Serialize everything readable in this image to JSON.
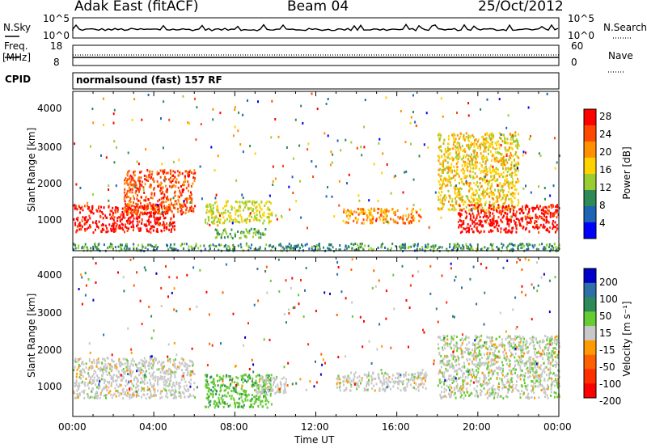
{
  "header": {
    "radar": "Adak East (fitACF)",
    "beam": "Beam 04",
    "date": "25/Oct/2012"
  },
  "top_panel": {
    "left_label": "N.Sky",
    "left_ticks": [
      "10^5",
      "10^0"
    ],
    "right_label": "N.Search",
    "right_ticks": [
      "10^5",
      "10^0"
    ]
  },
  "freq_panel": {
    "left_label_1": "Freq.",
    "left_label_2": "[MHz]",
    "left_ticks": [
      "18",
      "8"
    ],
    "right_label": "Nave",
    "right_ticks": [
      "60",
      "0"
    ]
  },
  "cpid": {
    "label": "CPID",
    "value": "normalsound (fast) 157 RF"
  },
  "chart_data": [
    {
      "type": "heatmap",
      "name": "Power",
      "ylabel": "Slant Range [km]",
      "colorbar_label": "Power [dB]",
      "colorbar_ticks": [
        "28",
        "24",
        "20",
        "16",
        "12",
        "8",
        "4"
      ],
      "colorbar_colors": [
        "#ff0000",
        "#ff4800",
        "#ff9000",
        "#ffd200",
        "#9acd32",
        "#2e8b57",
        "#1e64b4",
        "#0000ff"
      ],
      "y_ticks": [
        "4000",
        "3000",
        "2000",
        "1000"
      ],
      "ylim": [
        180,
        4500
      ],
      "xlim_hours": [
        0,
        24
      ],
      "regions": [
        {
          "x": [
            0.0,
            5.0
          ],
          "y": [
            700,
            1450
          ],
          "level": 28
        },
        {
          "x": [
            2.5,
            6.0
          ],
          "y": [
            1200,
            2400
          ],
          "level": 24
        },
        {
          "x": [
            6.5,
            9.8
          ],
          "y": [
            950,
            1550
          ],
          "level": 14
        },
        {
          "x": [
            7.0,
            9.5
          ],
          "y": [
            550,
            800
          ],
          "level": 10
        },
        {
          "x": [
            13.3,
            17.2
          ],
          "y": [
            950,
            1350
          ],
          "level": 20
        },
        {
          "x": [
            18.0,
            22.0
          ],
          "y": [
            1300,
            3400
          ],
          "level": 16
        },
        {
          "x": [
            19.0,
            24.0
          ],
          "y": [
            700,
            1450
          ],
          "level": 28
        },
        {
          "x": [
            0.0,
            24.0
          ],
          "y": [
            200,
            400
          ],
          "level": 8
        }
      ]
    },
    {
      "type": "heatmap",
      "name": "Velocity",
      "ylabel": "Slant Range [km]",
      "colorbar_label": "Velocity [m s⁻¹]",
      "colorbar_ticks": [
        "200",
        "100",
        "50",
        "15",
        "-15",
        "-50",
        "-100",
        "-200"
      ],
      "colorbar_colors": [
        "#0000c8",
        "#2f6fa8",
        "#2e8b57",
        "#66cc33",
        "#c8c8c8",
        "#ff9a00",
        "#ff6000",
        "#ff3000",
        "#ff0000"
      ],
      "y_ticks": [
        "4000",
        "3000",
        "2000",
        "1000"
      ],
      "ylim": [
        180,
        4500
      ],
      "xlim_hours": [
        0,
        24
      ],
      "regions": [
        {
          "x": [
            0.0,
            6.0
          ],
          "y": [
            700,
            1800
          ],
          "level": 0
        },
        {
          "x": [
            6.5,
            9.8
          ],
          "y": [
            450,
            1350
          ],
          "level": 40
        },
        {
          "x": [
            9.0,
            10.5
          ],
          "y": [
            800,
            1300
          ],
          "level": 0
        },
        {
          "x": [
            13.0,
            17.5
          ],
          "y": [
            900,
            1400
          ],
          "level": 0
        },
        {
          "x": [
            18.0,
            24.0
          ],
          "y": [
            700,
            2400
          ],
          "level": 10
        }
      ]
    }
  ],
  "x_axis": {
    "ticks": [
      "00:00",
      "04:00",
      "08:00",
      "12:00",
      "16:00",
      "20:00",
      "00:00"
    ],
    "label": "Time UT"
  }
}
